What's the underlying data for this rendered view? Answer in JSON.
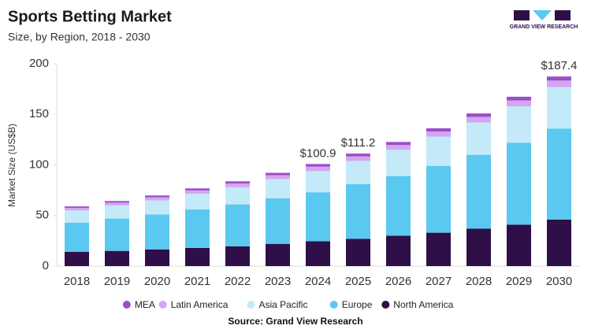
{
  "chart_data": {
    "type": "stacked_bar",
    "title": "Sports Betting Market",
    "subtitle": "Size, by Region, 2018 - 2030",
    "y_label": "Market Size (US$B)",
    "source": "Source: Grand View Research",
    "brand": "GRAND VIEW RESEARCH",
    "categories": [
      "2018",
      "2019",
      "2020",
      "2021",
      "2022",
      "2023",
      "2024",
      "2025",
      "2026",
      "2027",
      "2028",
      "2029",
      "2030"
    ],
    "series": [
      {
        "name": "North America",
        "color": "#2e0f47",
        "values": [
          14,
          15,
          16.5,
          18,
          19.5,
          22,
          24.5,
          27,
          30,
          33,
          37,
          41,
          46
        ]
      },
      {
        "name": "Europe",
        "color": "#5bc8f0",
        "values": [
          29,
          32,
          34.5,
          38,
          41.5,
          45,
          48.5,
          54,
          59,
          66,
          73,
          81,
          90
        ]
      },
      {
        "name": "Asia Pacific",
        "color": "#c4e9f9",
        "values": [
          12,
          13,
          14,
          15.5,
          17,
          19,
          21,
          23,
          26,
          29,
          32,
          36,
          41
        ]
      },
      {
        "name": "Latin America",
        "color": "#d4a6f0",
        "values": [
          2.5,
          2.7,
          3,
          3.3,
          3.6,
          3.8,
          4.3,
          4.4,
          4.7,
          5,
          5.5,
          5.8,
          6.4
        ]
      },
      {
        "name": "MEA",
        "color": "#9b4dca",
        "values": [
          1.5,
          1.6,
          1.8,
          2,
          2.2,
          2.4,
          2.6,
          2.8,
          3,
          3.2,
          3.4,
          3.6,
          4
        ]
      }
    ],
    "total_labels": [
      {
        "x": "2024",
        "value": 100.9,
        "label": "$100.9"
      },
      {
        "x": "2025",
        "value": 111.2,
        "label": "$111.2"
      },
      {
        "x": "2030",
        "value": 187.4,
        "label": "$187.4"
      }
    ],
    "ylim": [
      0,
      200
    ],
    "yticks": [
      0,
      50,
      100,
      150,
      200
    ],
    "grid": false,
    "legend": "bottom"
  }
}
